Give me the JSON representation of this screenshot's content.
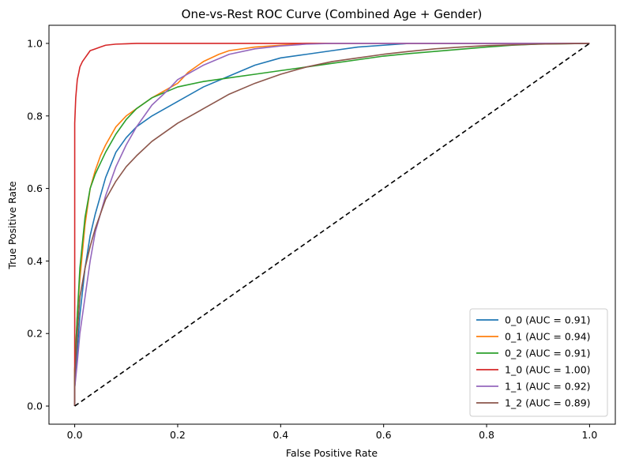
{
  "chart_data": {
    "type": "line",
    "title": "One-vs-Rest ROC Curve (Combined Age + Gender)",
    "xlabel": "False Positive Rate",
    "ylabel": "True Positive Rate",
    "xlim": [
      -0.05,
      1.05
    ],
    "ylim": [
      -0.05,
      1.05
    ],
    "xticks": [
      "0.0",
      "0.2",
      "0.4",
      "0.6",
      "0.8",
      "1.0"
    ],
    "yticks": [
      "0.0",
      "0.2",
      "0.4",
      "0.6",
      "0.8",
      "1.0"
    ],
    "grid": false,
    "legend_position": "lower-right",
    "series": [
      {
        "name": "0_0 (AUC = 0.91)",
        "color": "#1f77b4",
        "x": [
          0,
          0,
          0.005,
          0.01,
          0.02,
          0.03,
          0.04,
          0.05,
          0.06,
          0.08,
          0.1,
          0.12,
          0.15,
          0.2,
          0.25,
          0.3,
          0.35,
          0.4,
          0.45,
          0.5,
          0.55,
          0.6,
          0.65,
          0.7,
          1.0
        ],
        "y": [
          0,
          0.05,
          0.15,
          0.25,
          0.38,
          0.47,
          0.53,
          0.58,
          0.63,
          0.7,
          0.74,
          0.77,
          0.8,
          0.84,
          0.88,
          0.91,
          0.94,
          0.96,
          0.97,
          0.98,
          0.99,
          0.995,
          1.0,
          1.0,
          1.0
        ]
      },
      {
        "name": "0_1 (AUC = 0.94)",
        "color": "#ff7f0e",
        "x": [
          0,
          0,
          0.005,
          0.01,
          0.02,
          0.03,
          0.04,
          0.05,
          0.06,
          0.08,
          0.1,
          0.12,
          0.15,
          0.2,
          0.22,
          0.25,
          0.28,
          0.3,
          0.35,
          0.4,
          0.45,
          0.5,
          1.0
        ],
        "y": [
          0,
          0.1,
          0.25,
          0.35,
          0.5,
          0.6,
          0.65,
          0.69,
          0.72,
          0.77,
          0.8,
          0.82,
          0.85,
          0.89,
          0.92,
          0.95,
          0.97,
          0.98,
          0.99,
          0.995,
          1.0,
          1.0,
          1.0
        ]
      },
      {
        "name": "0_2 (AUC = 0.91)",
        "color": "#2ca02c",
        "x": [
          0,
          0,
          0.005,
          0.01,
          0.02,
          0.03,
          0.04,
          0.05,
          0.06,
          0.08,
          0.1,
          0.12,
          0.15,
          0.2,
          0.25,
          0.3,
          0.35,
          0.4,
          0.45,
          0.5,
          0.55,
          0.6,
          0.65,
          0.7,
          0.75,
          0.8,
          0.85,
          0.9,
          1.0
        ],
        "y": [
          0,
          0.1,
          0.25,
          0.38,
          0.52,
          0.6,
          0.64,
          0.67,
          0.7,
          0.75,
          0.79,
          0.82,
          0.85,
          0.88,
          0.895,
          0.905,
          0.915,
          0.925,
          0.935,
          0.945,
          0.955,
          0.965,
          0.972,
          0.978,
          0.984,
          0.99,
          0.995,
          0.998,
          1.0
        ]
      },
      {
        "name": "1_0 (AUC = 1.00)",
        "color": "#d62728",
        "x": [
          0,
          0,
          0,
          0.002,
          0.005,
          0.008,
          0.01,
          0.015,
          0.02,
          0.025,
          0.03,
          0.04,
          0.05,
          0.06,
          0.08,
          0.1,
          0.12,
          1.0
        ],
        "y": [
          0,
          0.3,
          0.78,
          0.85,
          0.9,
          0.92,
          0.935,
          0.95,
          0.96,
          0.97,
          0.98,
          0.985,
          0.99,
          0.995,
          0.998,
          0.999,
          1.0,
          1.0
        ]
      },
      {
        "name": "1_1 (AUC = 0.92)",
        "color": "#9467bd",
        "x": [
          0,
          0,
          0.005,
          0.01,
          0.02,
          0.03,
          0.04,
          0.05,
          0.06,
          0.08,
          0.1,
          0.12,
          0.15,
          0.18,
          0.2,
          0.25,
          0.3,
          0.35,
          0.4,
          0.45,
          0.5,
          1.0
        ],
        "y": [
          0,
          0.05,
          0.12,
          0.2,
          0.3,
          0.4,
          0.48,
          0.53,
          0.58,
          0.66,
          0.72,
          0.77,
          0.83,
          0.87,
          0.9,
          0.94,
          0.97,
          0.985,
          0.993,
          0.998,
          1.0,
          1.0
        ]
      },
      {
        "name": "1_2 (AUC = 0.89)",
        "color": "#8c564b",
        "x": [
          0,
          0,
          0.005,
          0.01,
          0.02,
          0.03,
          0.04,
          0.05,
          0.06,
          0.08,
          0.1,
          0.12,
          0.15,
          0.2,
          0.25,
          0.3,
          0.35,
          0.4,
          0.45,
          0.5,
          0.55,
          0.6,
          0.65,
          0.7,
          0.75,
          0.8,
          0.9,
          1.0
        ],
        "y": [
          0,
          0.08,
          0.2,
          0.3,
          0.38,
          0.44,
          0.49,
          0.53,
          0.57,
          0.62,
          0.66,
          0.69,
          0.73,
          0.78,
          0.82,
          0.86,
          0.89,
          0.915,
          0.935,
          0.95,
          0.96,
          0.97,
          0.978,
          0.985,
          0.99,
          0.994,
          0.998,
          1.0
        ]
      },
      {
        "name": "",
        "color": "#000000",
        "dashed": true,
        "x": [
          0,
          1
        ],
        "y": [
          0,
          1
        ]
      }
    ]
  }
}
